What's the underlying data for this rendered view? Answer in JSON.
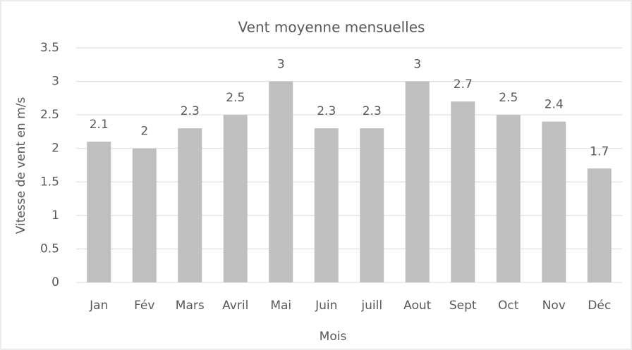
{
  "chart_data": {
    "type": "bar",
    "title": "Vent moyenne mensuelles",
    "x_label": "Mois",
    "y_label": "Vitesse de vent en m/s",
    "categories": [
      "Jan",
      "Fév",
      "Mars",
      "Avril",
      "Mai",
      "Juin",
      "juill",
      "Aout",
      "Sept",
      "Oct",
      "Nov",
      "Déc"
    ],
    "values": [
      2.1,
      2,
      2.3,
      2.5,
      3,
      2.3,
      2.3,
      3,
      2.7,
      2.5,
      2.4,
      1.7
    ],
    "color": "#bfbfbf",
    "ylim": [
      0,
      3.5
    ],
    "yticks": [
      0,
      0.5,
      1,
      1.5,
      2,
      2.5,
      3,
      3.5
    ],
    "grid": true
  }
}
